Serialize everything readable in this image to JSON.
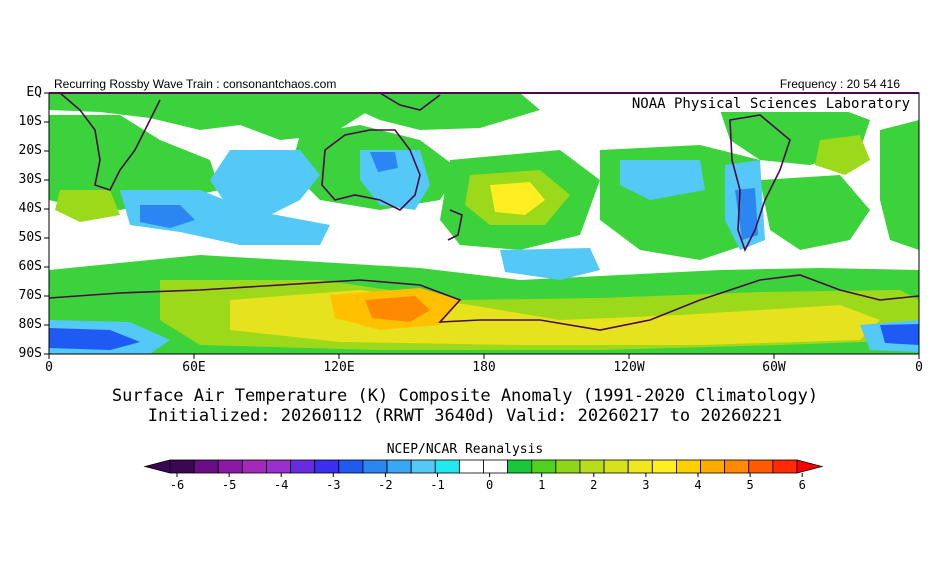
{
  "header": {
    "left": "Recurring Rossby Wave Train : consonantchaos.com",
    "right": "Frequency : 20 54 416",
    "lab_name": "NOAA Physical Sciences Laboratory"
  },
  "axes": {
    "lat_labels": [
      "EQ",
      "10S",
      "20S",
      "30S",
      "40S",
      "50S",
      "60S",
      "70S",
      "80S",
      "90S"
    ],
    "lon_labels": [
      "0",
      "60E",
      "120E",
      "180",
      "120W",
      "60W",
      "0"
    ]
  },
  "titles": {
    "line1": "Surface Air Temperature (K) Composite Anomaly (1991-2020 Climatology)",
    "line2": "Initialized: 20260112 (RRWT 3640d) Valid: 20260217 to 20260221"
  },
  "colorbar": {
    "title": "NCEP/NCAR Reanalysis",
    "tick_labels": [
      "-6",
      "-5",
      "-4",
      "-3",
      "-2",
      "-1",
      "0",
      "1",
      "2",
      "3",
      "4",
      "5",
      "6"
    ],
    "colors": [
      "#3b0752",
      "#6b0d86",
      "#8a1aa6",
      "#a32ab8",
      "#9a2ecf",
      "#6a2be0",
      "#3a2ff0",
      "#1f5bf3",
      "#2c86f2",
      "#3aa7f4",
      "#54c8f6",
      "#22e8f0",
      "#ffffff",
      "#ffffff",
      "#17c83c",
      "#50d11e",
      "#8fd61a",
      "#b9dd1d",
      "#d6e21e",
      "#efe81e",
      "#ffee22",
      "#ffd000",
      "#ffac00",
      "#ff8a00",
      "#ff5a00",
      "#ff2a00"
    ]
  },
  "icons": {
    "map": "world-map-icon"
  }
}
